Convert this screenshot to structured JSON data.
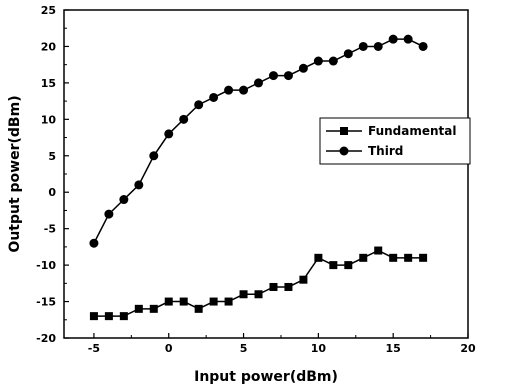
{
  "chart_data": {
    "type": "line",
    "title": "",
    "xlabel": "Input power(dBm)",
    "ylabel": "Output power(dBm)",
    "xlim": [
      -7,
      20
    ],
    "ylim": [
      -20,
      25
    ],
    "xticks": [
      -5,
      0,
      5,
      10,
      15,
      20
    ],
    "yticks": [
      -20,
      -15,
      -10,
      -5,
      0,
      5,
      10,
      15,
      20,
      25
    ],
    "grid": false,
    "legend_position": "middle-right",
    "series": [
      {
        "name": "Fundamental",
        "marker": "square",
        "color": "#000000",
        "x": [
          -5,
          -4,
          -3,
          -2,
          -1,
          0,
          1,
          2,
          3,
          4,
          5,
          6,
          7,
          8,
          9,
          10,
          11,
          12,
          13,
          14,
          15,
          16,
          17
        ],
        "y": [
          -17,
          -17,
          -17,
          -16,
          -16,
          -15,
          -15,
          -16,
          -15,
          -15,
          -14,
          -14,
          -13,
          -13,
          -12,
          -9,
          -10,
          -10,
          -9,
          -8,
          -9,
          -9,
          -9
        ]
      },
      {
        "name": "Third",
        "marker": "circle",
        "color": "#000000",
        "x": [
          -5,
          -4,
          -3,
          -2,
          -1,
          0,
          1,
          2,
          3,
          4,
          5,
          6,
          7,
          8,
          9,
          10,
          11,
          12,
          13,
          14,
          15,
          16,
          17
        ],
        "y": [
          -7,
          -3,
          -1,
          1,
          5,
          8,
          10,
          12,
          13,
          14,
          14,
          15,
          16,
          16,
          17,
          18,
          18,
          19,
          20,
          20,
          21,
          21,
          20
        ]
      }
    ]
  }
}
